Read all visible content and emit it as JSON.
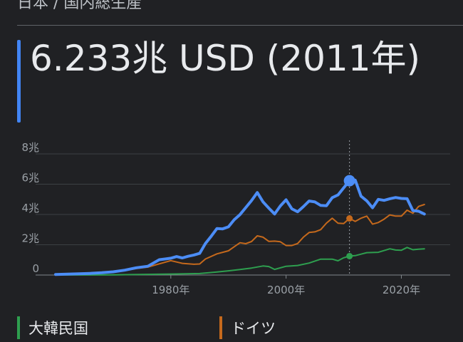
{
  "breadcrumb": "日本 / 国内総生産",
  "headline": "6.233兆 USD (2011年)",
  "colors": {
    "japan": "#4c8df6",
    "germany": "#c5691c",
    "korea": "#2e9f4f",
    "background": "#202124"
  },
  "legend": [
    {
      "label": "大韓民国",
      "color": "#2e9f4f"
    },
    {
      "label": "ドイツ",
      "color": "#c5691c"
    }
  ],
  "chart_data": {
    "type": "line",
    "title": "",
    "xlabel": "",
    "ylabel": "",
    "xlim": [
      1960,
      2026
    ],
    "ylim": [
      0,
      8
    ],
    "y_ticks": [
      {
        "value": 0,
        "label": "0"
      },
      {
        "value": 2,
        "label": "2兆"
      },
      {
        "value": 4,
        "label": "4兆"
      },
      {
        "value": 6,
        "label": "6兆"
      },
      {
        "value": 8,
        "label": "8兆"
      }
    ],
    "x_ticks": [
      {
        "value": 1980,
        "label": "1980年"
      },
      {
        "value": 2000,
        "label": "2000年"
      },
      {
        "value": 2020,
        "label": "2020年"
      }
    ],
    "grid": "horizontal",
    "highlight": {
      "x": 2011,
      "label": "6.233兆 USD (2011年)"
    },
    "series": [
      {
        "key": "japan",
        "x": [
          1960,
          1962,
          1964,
          1966,
          1968,
          1970,
          1972,
          1974,
          1976,
          1978,
          1979,
          1980,
          1981,
          1982,
          1983,
          1984,
          1985,
          1986,
          1987,
          1988,
          1989,
          1990,
          1991,
          1992,
          1993,
          1994,
          1995,
          1996,
          1997,
          1998,
          1999,
          2000,
          2001,
          2002,
          2003,
          2004,
          2005,
          2006,
          2007,
          2008,
          2009,
          2010,
          2011,
          2012,
          2013,
          2014,
          2015,
          2016,
          2017,
          2018,
          2019,
          2020,
          2021,
          2022,
          2023,
          2024
        ],
        "values": [
          0.04,
          0.06,
          0.08,
          0.11,
          0.15,
          0.21,
          0.32,
          0.48,
          0.58,
          1.01,
          1.06,
          1.11,
          1.22,
          1.13,
          1.24,
          1.32,
          1.43,
          2.08,
          2.56,
          3.07,
          3.05,
          3.18,
          3.65,
          3.99,
          4.45,
          4.92,
          5.45,
          4.83,
          4.42,
          4.03,
          4.56,
          4.97,
          4.37,
          4.18,
          4.52,
          4.89,
          4.83,
          4.6,
          4.58,
          5.11,
          5.29,
          5.76,
          6.23,
          6.27,
          5.21,
          4.9,
          4.44,
          5.0,
          4.93,
          5.04,
          5.12,
          5.06,
          5.04,
          4.26,
          4.21,
          4.03
        ]
      },
      {
        "key": "germany",
        "x": [
          1970,
          1972,
          1974,
          1976,
          1978,
          1980,
          1982,
          1984,
          1985,
          1986,
          1988,
          1990,
          1991,
          1992,
          1993,
          1994,
          1995,
          1996,
          1997,
          1998,
          1999,
          2000,
          2001,
          2002,
          2003,
          2004,
          2005,
          2006,
          2007,
          2008,
          2009,
          2010,
          2011,
          2012,
          2013,
          2014,
          2015,
          2016,
          2017,
          2018,
          2019,
          2020,
          2021,
          2022,
          2023,
          2024
        ],
        "values": [
          0.21,
          0.3,
          0.43,
          0.52,
          0.74,
          0.95,
          0.77,
          0.71,
          0.73,
          1.06,
          1.4,
          1.6,
          1.87,
          2.13,
          2.07,
          2.21,
          2.59,
          2.5,
          2.22,
          2.24,
          2.2,
          1.95,
          1.95,
          2.08,
          2.5,
          2.81,
          2.85,
          3.0,
          3.43,
          3.75,
          3.42,
          3.4,
          3.74,
          3.54,
          3.75,
          3.89,
          3.36,
          3.47,
          3.69,
          3.97,
          3.89,
          3.89,
          4.28,
          4.08,
          4.53,
          4.66
        ]
      },
      {
        "key": "korea",
        "x": [
          1960,
          1970,
          1980,
          1985,
          1988,
          1990,
          1992,
          1994,
          1996,
          1997,
          1998,
          2000,
          2002,
          2004,
          2006,
          2008,
          2009,
          2010,
          2011,
          2012,
          2014,
          2016,
          2018,
          2019,
          2020,
          2021,
          2022,
          2023,
          2024
        ],
        "values": [
          0.004,
          0.009,
          0.065,
          0.1,
          0.2,
          0.28,
          0.36,
          0.46,
          0.6,
          0.56,
          0.37,
          0.58,
          0.63,
          0.79,
          1.05,
          1.05,
          0.94,
          1.14,
          1.25,
          1.28,
          1.48,
          1.5,
          1.73,
          1.65,
          1.64,
          1.82,
          1.67,
          1.71,
          1.73
        ]
      }
    ]
  }
}
